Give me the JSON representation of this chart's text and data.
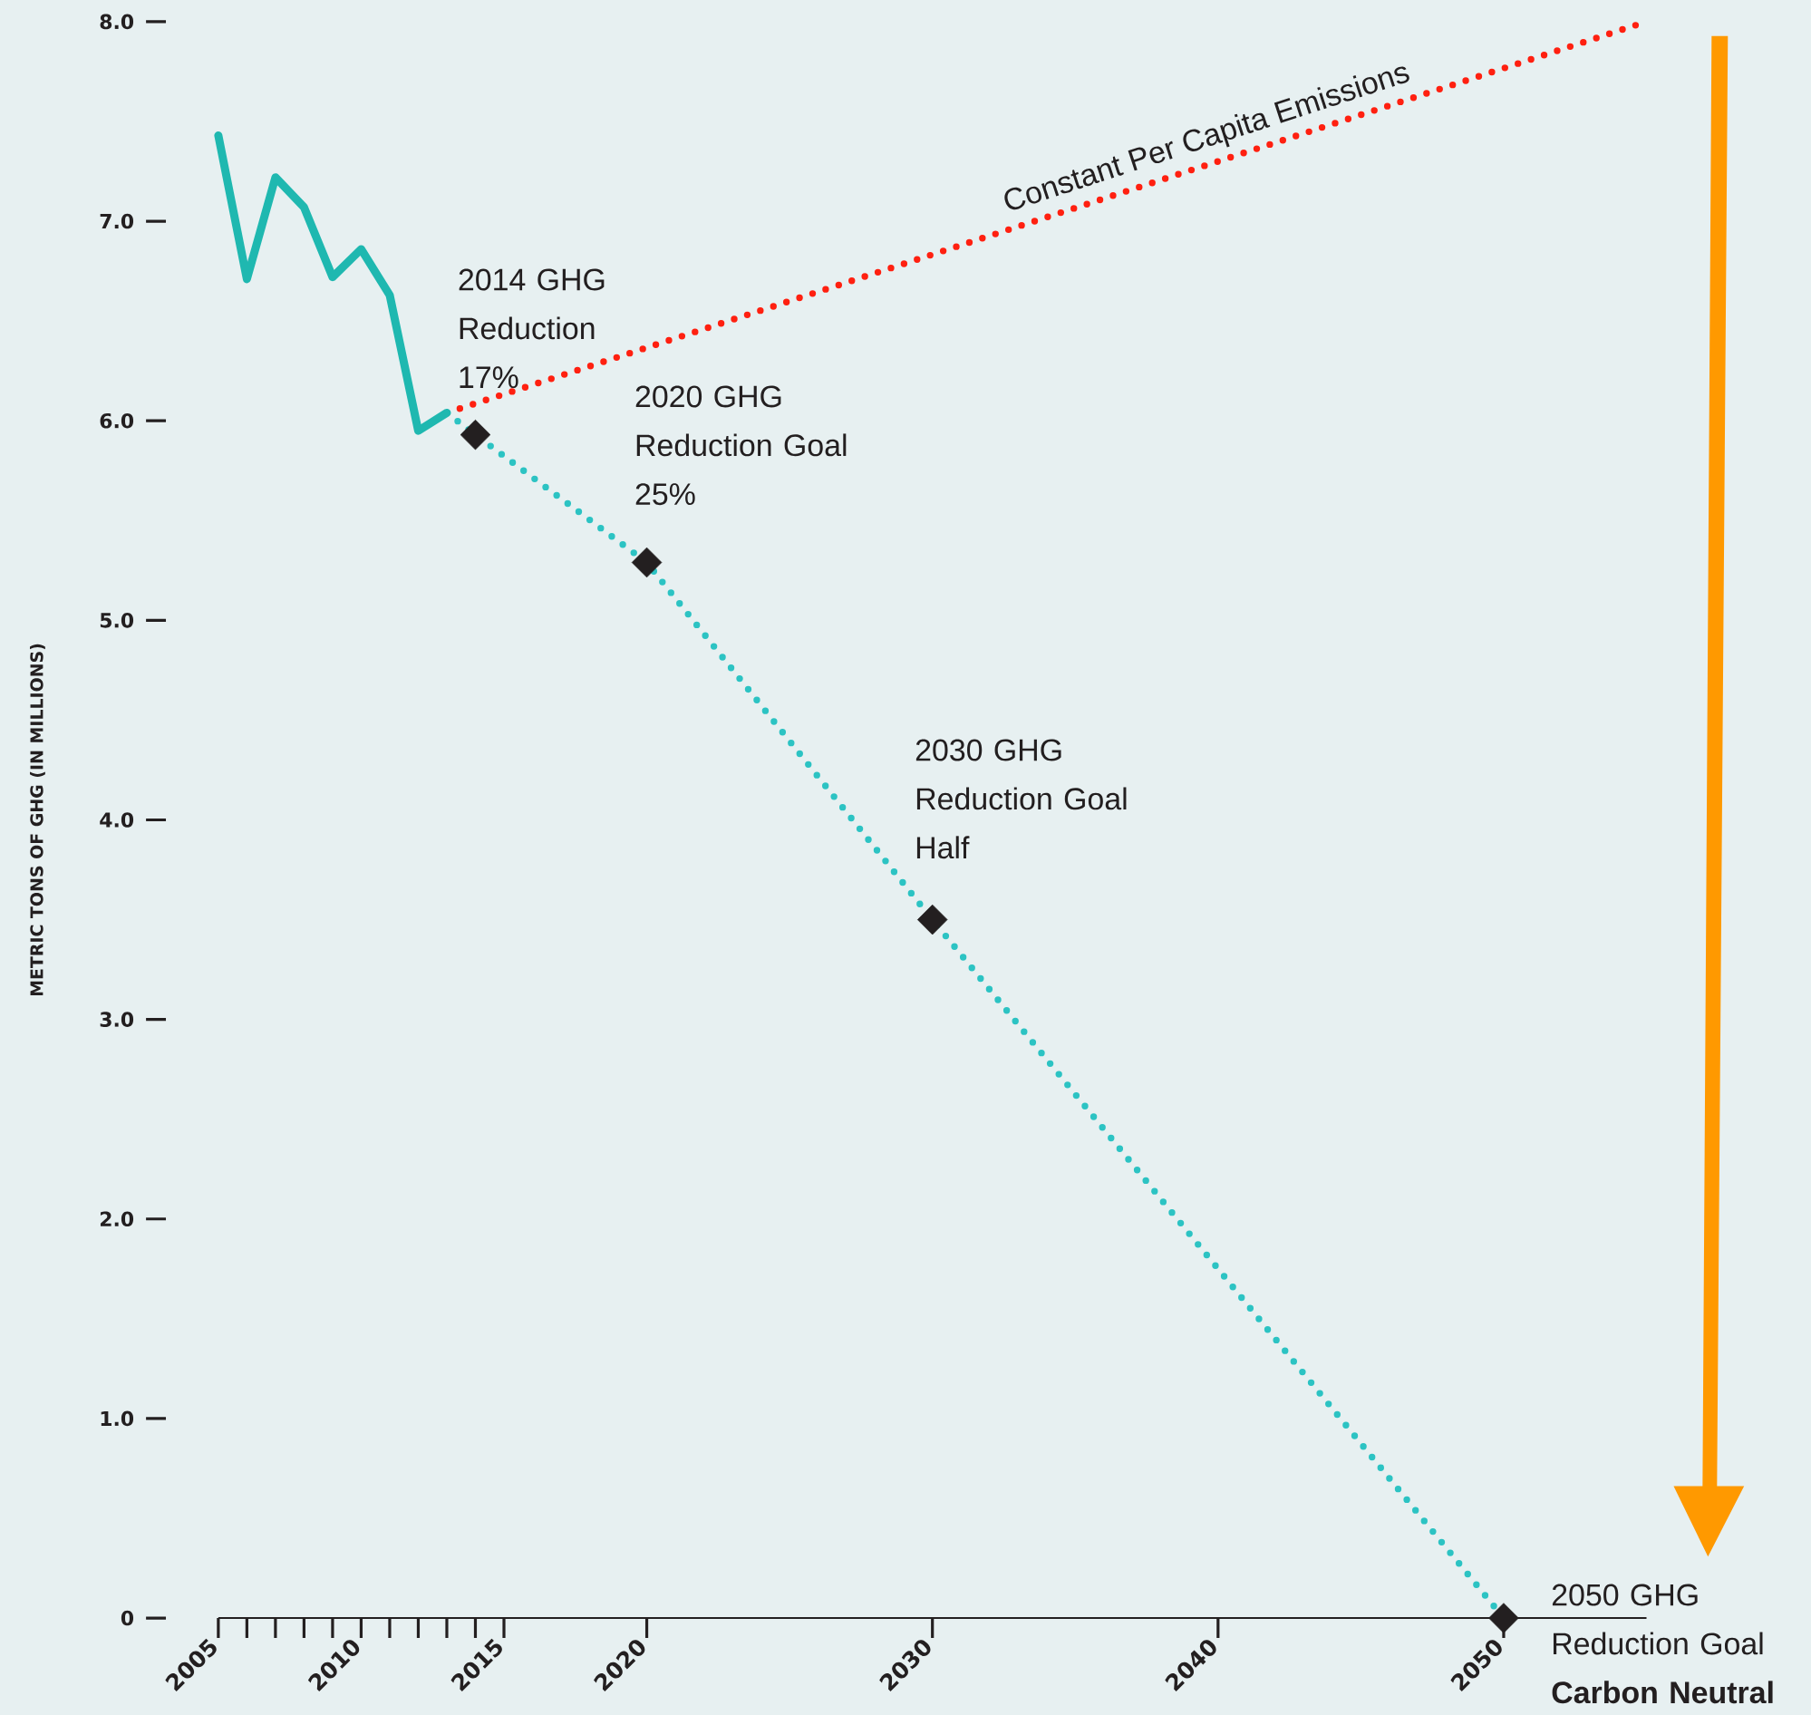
{
  "chart_data": {
    "type": "line",
    "ylabel": "METRIC TONS OF GHG (IN MILLIONS)",
    "xlim": [
      2005,
      2055
    ],
    "xticks": [
      2005,
      {
        "value": 2006,
        "label": null
      },
      {
        "value": 2007,
        "label": null
      },
      {
        "value": 2008,
        "label": null
      },
      {
        "value": 2009,
        "label": null
      },
      2010,
      {
        "value": 2011,
        "label": null
      },
      {
        "value": 2012,
        "label": null
      },
      {
        "value": 2013,
        "label": null
      },
      {
        "value": 2014,
        "label": null
      },
      2015,
      2020,
      2030,
      2040,
      2050
    ],
    "ylim": [
      0,
      8
    ],
    "yticks": [
      0,
      {
        "value": 1,
        "label": "1.0"
      },
      {
        "value": 2,
        "label": "2.0"
      },
      {
        "value": 3,
        "label": "3.0"
      },
      {
        "value": 4,
        "label": "4.0"
      },
      {
        "value": 5,
        "label": "5.0"
      },
      {
        "value": 6,
        "label": "6.0"
      },
      {
        "value": 7,
        "label": "7.0"
      },
      {
        "value": 8,
        "label": "8.0"
      }
    ],
    "series": [
      {
        "type": "line",
        "name": "Constant Per Capita Emissions",
        "color": "#ff2010",
        "line_style": "dotted",
        "x": [
          2013,
          2055
        ],
        "values": [
          6.04,
          8.0
        ]
      },
      {
        "type": "line",
        "color": "#2cc3c3",
        "line_style": "dotted",
        "x": [
          2013,
          2014,
          2020,
          2030,
          2050
        ],
        "values": [
          6.04,
          5.93,
          5.29,
          3.5,
          0
        ]
      },
      {
        "type": "line",
        "color": "#1fb8b0",
        "line_style": "solid",
        "x": [
          2005,
          2006,
          2007,
          2008,
          2009,
          2010,
          2011,
          2012,
          2013
        ],
        "values": [
          7.43,
          6.71,
          7.22,
          7.07,
          6.72,
          6.86,
          6.63,
          5.95,
          6.04
        ]
      },
      {
        "type": "scatter",
        "color": "#231f20",
        "marker": "diamond",
        "x": [
          2014,
          2020,
          2030,
          2050
        ],
        "values": [
          5.93,
          5.29,
          3.5,
          0
        ]
      }
    ],
    "annotations": [
      {
        "text": "2014 GHG Reduction 17%",
        "x": 2014,
        "y": 5.93
      },
      {
        "text": "2020 GHG Reduction Goal 25%",
        "x": 2020,
        "y": 5.29
      },
      {
        "text": "2030 GHG Reduction Goal Half",
        "x": 2030,
        "y": 3.5
      },
      {
        "text": "2050 GHG Reduction Goal **Carbon Neutral**",
        "x": 2050,
        "y": 0
      }
    ]
  }
}
